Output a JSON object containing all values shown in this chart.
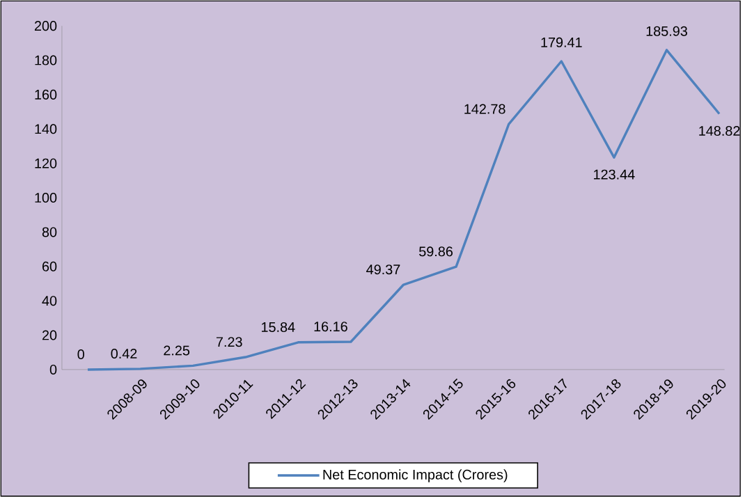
{
  "chart_data": {
    "type": "line",
    "categories": [
      null,
      "2008-09",
      "2009-10",
      "2010-11",
      "2011-12",
      "2012-13",
      "2013-14",
      "2014-15",
      "2015-16",
      "2016-17",
      "2017-18",
      "2018-19",
      "2019-20"
    ],
    "series": [
      {
        "name": "Net Economic Impact (Crores)",
        "color": "#4f81bd",
        "values": [
          0,
          0.42,
          2.25,
          7.23,
          15.84,
          16.16,
          49.37,
          59.86,
          142.78,
          179.41,
          123.44,
          185.93,
          148.82
        ]
      }
    ],
    "ylim": [
      0,
      200
    ],
    "yticks": [
      0,
      20,
      40,
      60,
      80,
      100,
      120,
      140,
      160,
      180,
      200
    ],
    "data_labels": true,
    "grid": false,
    "legend": "bottom",
    "marker": "none",
    "line_style": "solid"
  }
}
